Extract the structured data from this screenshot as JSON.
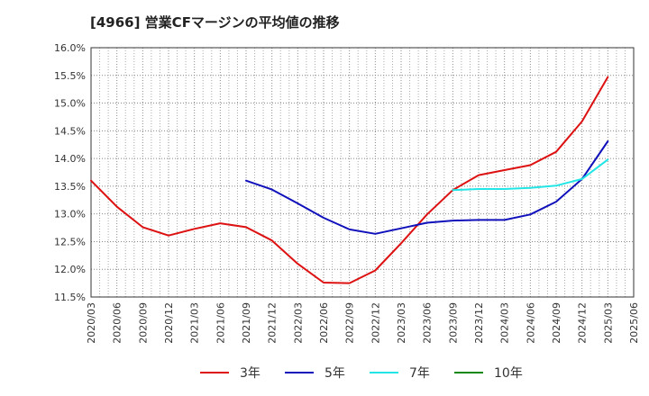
{
  "chart_data": {
    "type": "line",
    "title": "[4966]  営業CFマージンの平均値の推移",
    "x_labels": [
      "2020/03",
      "2020/06",
      "2020/09",
      "2020/12",
      "2021/03",
      "2021/06",
      "2021/09",
      "2021/12",
      "2022/03",
      "2022/06",
      "2022/09",
      "2022/12",
      "2023/03",
      "2023/06",
      "2023/09",
      "2023/12",
      "2024/03",
      "2024/06",
      "2024/09",
      "2024/12",
      "2025/03",
      "2025/06"
    ],
    "y_tick_labels": [
      "16.0%",
      "15.5%",
      "15.0%",
      "14.5%",
      "14.0%",
      "13.5%",
      "13.0%",
      "12.5%",
      "12.0%",
      "11.5%"
    ],
    "y_ticks": [
      16.0,
      15.5,
      15.0,
      14.5,
      14.0,
      13.5,
      13.0,
      12.5,
      12.0,
      11.5
    ],
    "ylim": [
      11.5,
      16.0
    ],
    "grid": true,
    "legend_position": "bottom",
    "series": [
      {
        "name": "3年",
        "color": "#dd1111",
        "values": [
          13.6,
          13.13,
          12.76,
          12.61,
          12.73,
          12.83,
          12.76,
          12.52,
          12.1,
          11.76,
          11.75,
          11.98,
          12.47,
          12.99,
          13.43,
          13.7,
          13.79,
          13.88,
          14.12,
          14.67,
          15.47,
          null
        ]
      },
      {
        "name": "5年",
        "color": "#1111bb",
        "values": [
          null,
          null,
          null,
          null,
          null,
          null,
          13.6,
          13.44,
          13.19,
          12.93,
          12.72,
          12.64,
          12.74,
          12.84,
          12.88,
          12.89,
          12.89,
          12.99,
          13.22,
          13.63,
          14.31,
          null
        ]
      },
      {
        "name": "7年",
        "color": "#22e5e5",
        "values": [
          null,
          null,
          null,
          null,
          null,
          null,
          null,
          null,
          null,
          null,
          null,
          null,
          null,
          null,
          13.43,
          13.45,
          13.45,
          13.47,
          13.51,
          13.63,
          13.98,
          null
        ]
      },
      {
        "name": "10年",
        "color": "#118811",
        "values": []
      }
    ]
  }
}
